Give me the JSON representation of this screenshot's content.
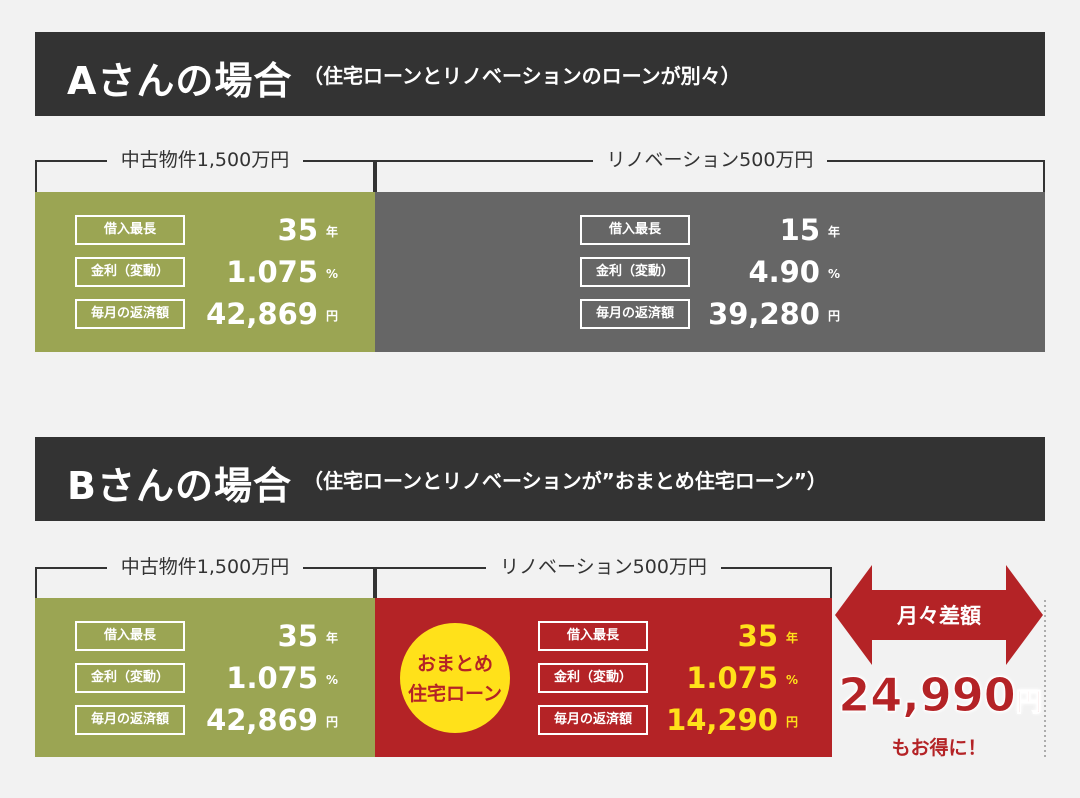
{
  "sections": [
    {
      "title": "Aさんの場合",
      "subtitle": "（住宅ローンとリノベーションのローンが別々）",
      "blocks": [
        {
          "header": "中古物件1,500万円",
          "rows": [
            {
              "label": "借入最長",
              "value": "35",
              "unit": "年"
            },
            {
              "label": "金利（変動）",
              "value": "1.075",
              "unit": "%"
            },
            {
              "label": "毎月の返済額",
              "value": "42,869",
              "unit": "円"
            }
          ]
        },
        {
          "header": "リノベーション500万円",
          "rows": [
            {
              "label": "借入最長",
              "value": "15",
              "unit": "年"
            },
            {
              "label": "金利（変動）",
              "value": "4.90",
              "unit": "%"
            },
            {
              "label": "毎月の返済額",
              "value": "39,280",
              "unit": "円"
            }
          ]
        }
      ]
    },
    {
      "title": "Bさんの場合",
      "subtitle": "（住宅ローンとリノベーションが”おまとめ住宅ローン”）",
      "blocks": [
        {
          "header": "中古物件1,500万円",
          "rows": [
            {
              "label": "借入最長",
              "value": "35",
              "unit": "年"
            },
            {
              "label": "金利（変動）",
              "value": "1.075",
              "unit": "%"
            },
            {
              "label": "毎月の返済額",
              "value": "42,869",
              "unit": "円"
            }
          ]
        },
        {
          "header": "リノベーション500万円",
          "badge": [
            "おまとめ",
            "住宅ローン"
          ],
          "rows": [
            {
              "label": "借入最長",
              "value": "35",
              "unit": "年"
            },
            {
              "label": "金利（変動）",
              "value": "1.075",
              "unit": "%"
            },
            {
              "label": "毎月の返済額",
              "value": "14,290",
              "unit": "円"
            }
          ]
        }
      ]
    }
  ],
  "savings": {
    "label": "月々差額",
    "amount": "24,990",
    "unit": "円",
    "note": "もお得に！"
  }
}
